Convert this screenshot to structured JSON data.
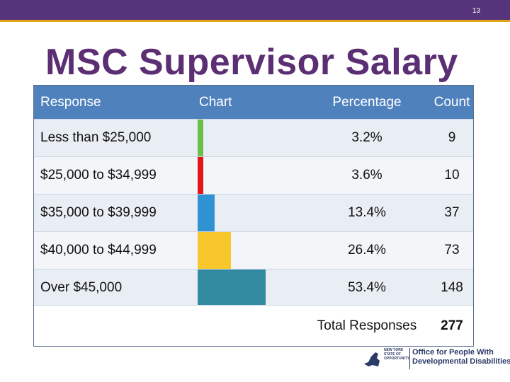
{
  "page_number": "13",
  "title": "MSC Supervisor Salary",
  "table": {
    "headers": {
      "response": "Response",
      "chart": "Chart",
      "percentage": "Percentage",
      "count": "Count"
    },
    "rows": [
      {
        "response": "Less than $25,000",
        "percentage": "3.2%",
        "count": "9",
        "bar_color": "#6dbf4b",
        "share": 3.2
      },
      {
        "response": "$25,000 to $34,999",
        "percentage": "3.6%",
        "count": "10",
        "bar_color": "#e3151b",
        "share": 3.6
      },
      {
        "response": "$35,000 to $39,999",
        "percentage": "13.4%",
        "count": "37",
        "bar_color": "#2f93d3",
        "share": 13.4
      },
      {
        "response": "$40,000 to $44,999",
        "percentage": "26.4%",
        "count": "73",
        "bar_color": "#f7c72c",
        "share": 26.4
      },
      {
        "response": "Over $45,000",
        "percentage": "53.4%",
        "count": "148",
        "bar_color": "#318aa0",
        "share": 53.4
      }
    ],
    "total_label": "Total Responses",
    "total_count": "277"
  },
  "logo": {
    "state_text": "NEW YORK STATE OF OPPORTUNITY",
    "org_text_line1": "Office for People With",
    "org_text_line2": "Developmental Disabilities"
  }
}
